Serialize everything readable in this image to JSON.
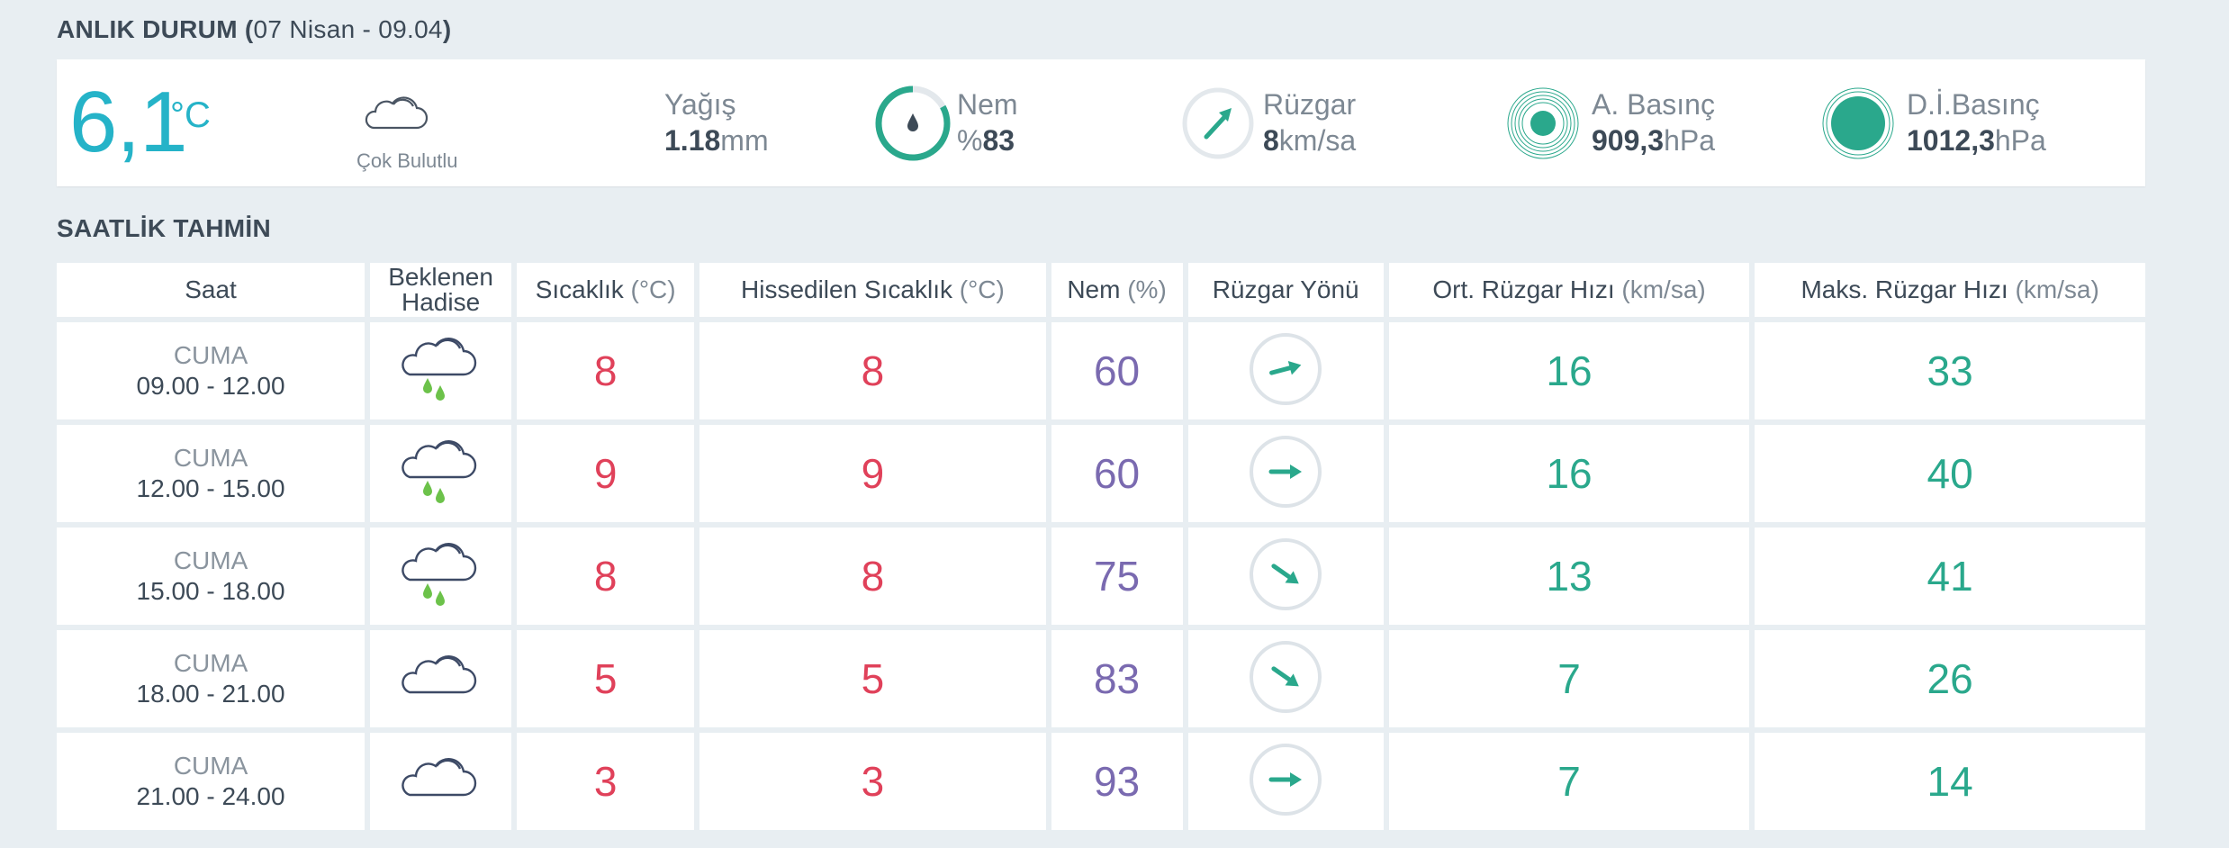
{
  "current": {
    "title_bold": "ANLIK DURUM (",
    "title_light": "07 Nisan - 09.04",
    "title_close": ")",
    "temp": "6,1",
    "temp_unit": "°C",
    "condition_icon": "cloudy-icon",
    "condition": "Çok Bulutlu",
    "rain_label": "Yağış",
    "rain_value": "1.18",
    "rain_unit": "mm",
    "humidity_label": "Nem",
    "humidity_prefix": "%",
    "humidity_value": "83",
    "wind_label": "Rüzgar",
    "wind_value": "8",
    "wind_unit": "km/sa",
    "pressure_label": "A. Basınç",
    "pressure_value": "909,3",
    "pressure_unit": "hPa",
    "sea_pressure_label": "D.İ.Basınç",
    "sea_pressure_value": "1012,3",
    "sea_pressure_unit": "hPa"
  },
  "hourly": {
    "title": "SAATLİK TAHMİN",
    "headers": {
      "saat": "Saat",
      "hadise_1": "Beklenen",
      "hadise_2": "Hadise",
      "sicaklik": "Sıcaklık",
      "sicaklik_u": "(°C)",
      "hissedilen": "Hissedilen Sıcaklık",
      "hissedilen_u": "(°C)",
      "nem": "Nem",
      "nem_u": "(%)",
      "yon": "Rüzgar Yönü",
      "ort": "Ort. Rüzgar Hızı",
      "ort_u": "(km/sa)",
      "maks": "Maks. Rüzgar Hızı",
      "maks_u": "(km/sa)"
    },
    "rows": [
      {
        "day": "CUMA",
        "hours": "09.00 - 12.00",
        "icon": "rain-cloud-icon",
        "temp": "8",
        "feels": "8",
        "hum": "60",
        "wind_dir": "arrow-east-northeast-icon",
        "avg": "16",
        "max": "33"
      },
      {
        "day": "CUMA",
        "hours": "12.00 - 15.00",
        "icon": "rain-cloud-icon",
        "temp": "9",
        "feels": "9",
        "hum": "60",
        "wind_dir": "arrow-east-icon",
        "avg": "16",
        "max": "40"
      },
      {
        "day": "CUMA",
        "hours": "15.00 - 18.00",
        "icon": "rain-cloud-icon",
        "temp": "8",
        "feels": "8",
        "hum": "75",
        "wind_dir": "arrow-southeast-icon",
        "avg": "13",
        "max": "41"
      },
      {
        "day": "CUMA",
        "hours": "18.00 - 21.00",
        "icon": "cloudy-icon",
        "temp": "5",
        "feels": "5",
        "hum": "83",
        "wind_dir": "arrow-southeast-icon",
        "avg": "7",
        "max": "26"
      },
      {
        "day": "CUMA",
        "hours": "21.00 - 24.00",
        "icon": "cloudy-icon",
        "temp": "3",
        "feels": "3",
        "hum": "93",
        "wind_dir": "arrow-east-icon",
        "avg": "7",
        "max": "14"
      }
    ]
  },
  "colors": {
    "accent_teal": "#2aa88c",
    "temp_cyan": "#25b3c8",
    "temp_red": "#e0415a",
    "humidity_purple": "#7a6ab0",
    "rain_green": "#6cc24a"
  }
}
